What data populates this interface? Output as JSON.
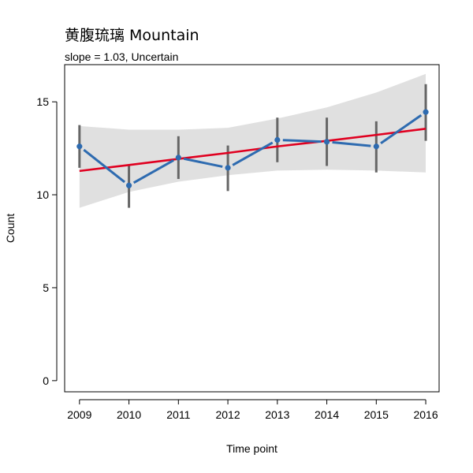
{
  "chart_data": {
    "type": "line",
    "title": "黄腹琉璃 Mountain",
    "subtitle": "slope = 1.03, Uncertain",
    "xlabel": "Time point",
    "ylabel": "Count",
    "x": [
      2009,
      2010,
      2011,
      2012,
      2013,
      2014,
      2015,
      2016
    ],
    "x_tick_labels": [
      "2009",
      "2010",
      "2011",
      "2012",
      "2013",
      "2014",
      "2015",
      "2016"
    ],
    "y_ticks": [
      0,
      5,
      10,
      15
    ],
    "y_tick_labels": [
      "0",
      "5",
      "10",
      "15"
    ],
    "xlim": [
      2008.7,
      2016.27
    ],
    "ylim": [
      -0.6,
      17.0
    ],
    "grid": false,
    "series": [
      {
        "kind": "observed",
        "values": [
          12.6,
          10.5,
          12.0,
          11.45,
          12.95,
          12.85,
          12.6,
          14.45
        ],
        "error_low": [
          11.45,
          9.3,
          10.85,
          10.2,
          11.75,
          11.55,
          11.2,
          12.9
        ],
        "error_high": [
          13.75,
          11.6,
          13.15,
          12.65,
          14.15,
          14.15,
          13.95,
          15.95
        ],
        "color": "#2e6bb0",
        "error_color": "#666666"
      },
      {
        "kind": "trend",
        "values": [
          11.28,
          11.6,
          11.93,
          12.25,
          12.6,
          12.9,
          13.22,
          13.55
        ],
        "color": "#e00020"
      }
    ],
    "confidence_band": {
      "lower": [
        9.3,
        10.15,
        10.7,
        11.05,
        11.3,
        11.35,
        11.3,
        11.2
      ],
      "upper": [
        13.7,
        13.5,
        13.5,
        13.6,
        14.1,
        14.7,
        15.5,
        16.5
      ],
      "color": "#e0e0e0"
    }
  }
}
